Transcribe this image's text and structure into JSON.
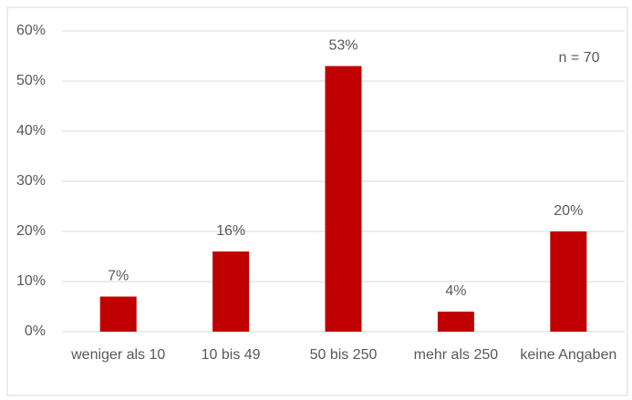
{
  "chart_data": {
    "type": "bar",
    "categories": [
      "weniger als 10",
      "10 bis 49",
      "50 bis 250",
      "mehr als 250",
      "keine Angaben"
    ],
    "values": [
      7,
      16,
      53,
      4,
      20
    ],
    "value_labels": [
      "7%",
      "16%",
      "53%",
      "4%",
      "20%"
    ],
    "color": "#c00000",
    "ylim": [
      0,
      60
    ],
    "yticks": [
      {
        "value": 0,
        "label": "0%"
      },
      {
        "value": 10,
        "label": "10%"
      },
      {
        "value": 20,
        "label": "20%"
      },
      {
        "value": 30,
        "label": "30%"
      },
      {
        "value": 40,
        "label": "40%"
      },
      {
        "value": 50,
        "label": "50%"
      },
      {
        "value": 60,
        "label": "60%"
      }
    ],
    "grid": true,
    "annotation": "n = 70"
  }
}
